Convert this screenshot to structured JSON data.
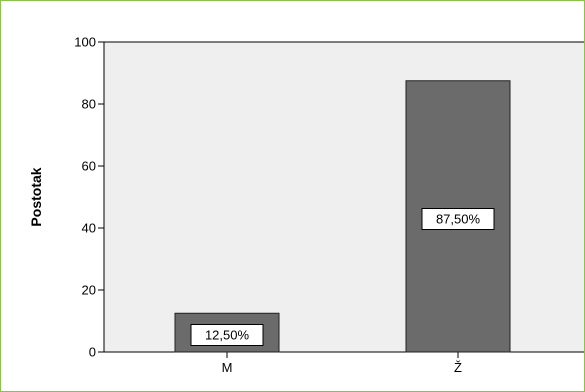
{
  "chart_data": {
    "type": "bar",
    "categories": [
      "M",
      "Ž"
    ],
    "values": [
      12.5,
      87.5
    ],
    "data_labels": [
      "12,50%",
      "87,50%"
    ],
    "ylabel": "Postotak",
    "xlabel": "",
    "ylim": [
      0,
      100
    ],
    "yticks": [
      "0",
      "20",
      "40",
      "60",
      "80",
      "100"
    ],
    "grid": false,
    "colors": {
      "bar_fill": "#6b6b6b",
      "bar_stroke": "#222222",
      "plot_background": "#efefef",
      "frame_border": "#8bc34a"
    }
  }
}
